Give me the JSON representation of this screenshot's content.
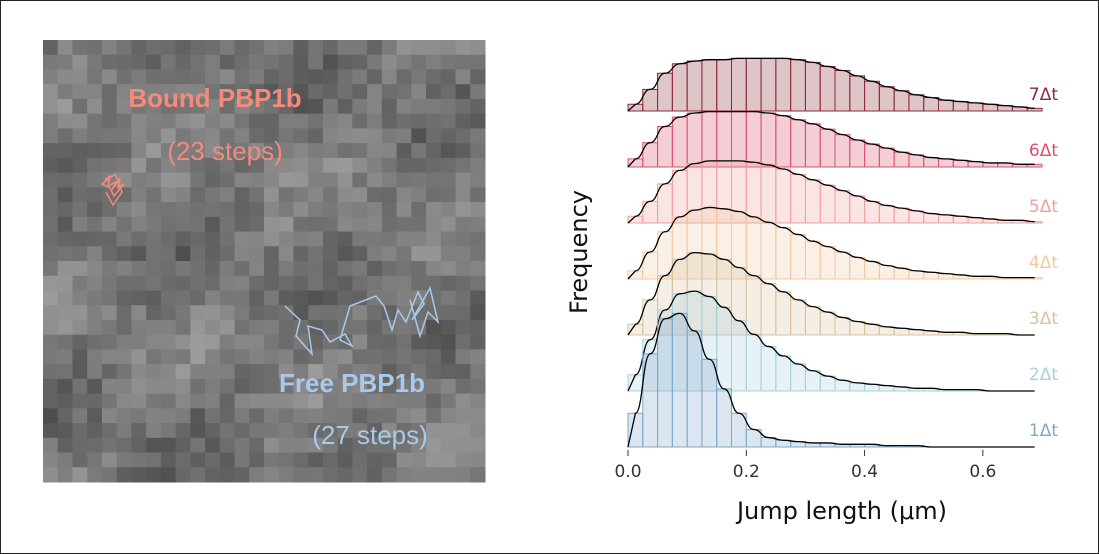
{
  "image": {
    "tracks": [
      {
        "name": "Bound PBP1b",
        "steps": "(23 steps)"
      },
      {
        "name": "Free PBP1b",
        "steps": "(27 steps)"
      }
    ]
  },
  "chart_data": {
    "type": "histogram",
    "xlabel": "Jump length (μm)",
    "ylabel": "Frequency",
    "xlim": [
      0,
      0.7
    ],
    "xticks": [
      {
        "value": 0,
        "label": "0.0"
      },
      0.2,
      0.4,
      0.6
    ],
    "bins": [
      0,
      0.025,
      0.05,
      0.075,
      0.1,
      0.125,
      0.15,
      0.175,
      0.2,
      0.225,
      0.25,
      0.275,
      0.3,
      0.325,
      0.35,
      0.375,
      0.4,
      0.425,
      0.45,
      0.475,
      0.5,
      0.525,
      0.55,
      0.575,
      0.6,
      0.625,
      0.65,
      0.675,
      0.7
    ],
    "series": [
      {
        "name": "1Δt",
        "color": "#7ea7c8",
        "values": [
          25,
          69,
          95,
          99,
          86,
          65,
          43,
          25,
          13,
          7,
          5,
          4,
          3,
          3,
          2,
          2,
          2,
          1,
          1,
          1,
          0,
          0,
          0,
          0,
          0,
          0,
          0,
          0
        ]
      },
      {
        "name": "2Δt",
        "color": "#a6d2db",
        "values": [
          12,
          38,
          60,
          72,
          74,
          70,
          62,
          52,
          42,
          33,
          26,
          20,
          15,
          11,
          8,
          6,
          5,
          4,
          3,
          2,
          2,
          1,
          1,
          1,
          0,
          0,
          0,
          0
        ]
      },
      {
        "name": "3Δt",
        "color": "#d8c29f",
        "values": [
          8,
          26,
          44,
          56,
          61,
          60,
          56,
          50,
          44,
          38,
          32,
          26,
          21,
          17,
          13,
          10,
          8,
          6,
          5,
          4,
          3,
          2,
          2,
          1,
          1,
          1,
          0,
          0
        ]
      },
      {
        "name": "4Δt",
        "color": "#f2c8a0",
        "values": [
          6,
          20,
          35,
          46,
          51,
          53,
          52,
          50,
          46,
          42,
          38,
          33,
          28,
          24,
          20,
          16,
          13,
          10,
          8,
          6,
          5,
          4,
          3,
          2,
          2,
          1,
          1,
          1
        ]
      },
      {
        "name": "5Δt",
        "color": "#ef9f9f",
        "values": [
          5,
          16,
          29,
          39,
          44,
          46,
          46,
          46,
          45,
          43,
          40,
          36,
          32,
          28,
          24,
          20,
          16,
          13,
          11,
          9,
          7,
          6,
          5,
          4,
          3,
          2,
          2,
          1
        ]
      },
      {
        "name": "6Δt",
        "color": "#d9506a",
        "values": [
          6,
          18,
          30,
          37,
          40,
          41,
          41,
          41,
          41,
          40,
          38,
          35,
          32,
          28,
          24,
          20,
          17,
          14,
          11,
          9,
          7,
          6,
          5,
          4,
          3,
          3,
          2,
          2
        ]
      },
      {
        "name": "7Δt",
        "color": "#8b2a3a",
        "values": [
          5,
          16,
          28,
          35,
          37,
          38,
          38,
          39,
          39,
          39,
          39,
          38,
          36,
          33,
          30,
          26,
          22,
          18,
          15,
          12,
          10,
          8,
          7,
          6,
          5,
          4,
          3,
          2
        ]
      }
    ]
  }
}
